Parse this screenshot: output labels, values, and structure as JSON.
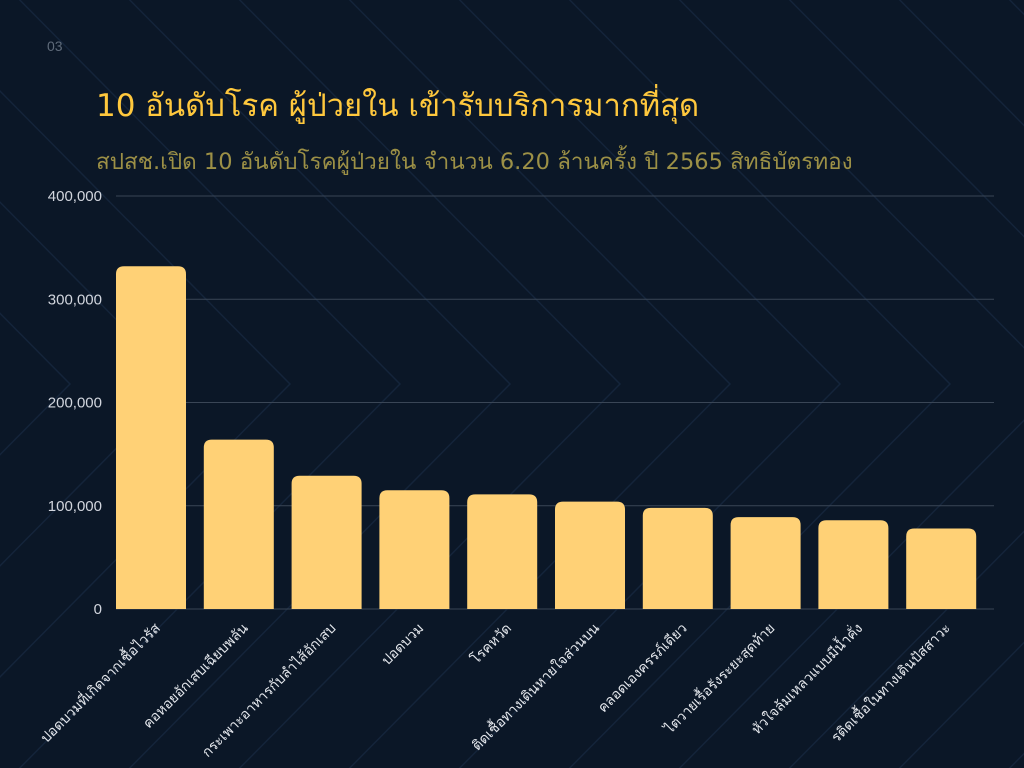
{
  "page_number": "03",
  "title": "10 อันดับโรค ผู้ป่วยใน เข้ารับบริการมากที่สุด",
  "subtitle": "สปสช.เปิด 10 อันดับโรคผู้ป่วยใน จำนวน 6.20 ล้านครั้ง ปี 2565 สิทธิบัตรทอง",
  "colors": {
    "background": "#0b1727",
    "bar": "#ffd176",
    "title": "#ffc83d",
    "subtitle": "#9c9046",
    "grid": "#3a4656"
  },
  "chart_data": {
    "type": "bar",
    "title": "",
    "xlabel": "",
    "ylabel": "",
    "categories": [
      "ปอดบวมที่เกิดจากเชื้อไวรัส",
      "คอหอยอักเสบเฉียบพลัน",
      "กระเพาะอาหารกับลำไส้อักเสบ",
      "ปอดบวม",
      "โรคหวัด",
      "ติดเชื้อทางเดินหายใจส่วนบน",
      "คลอดเองครรภ์เดียว",
      "ไตวายเรื้อรังระยะสุดท้าย",
      "หัวใจล้มเหลวแบบมีน้ำคั่ง",
      "รติดเชื้อในทางเดินปัสสาวะ"
    ],
    "values": [
      332000,
      164000,
      129000,
      115000,
      111000,
      104000,
      98000,
      89000,
      86000,
      78000
    ],
    "ylim": [
      0,
      400000
    ],
    "yticks": [
      "0",
      "100,000",
      "200,000",
      "300,000",
      "400,000"
    ],
    "grid": true,
    "legend": "none"
  }
}
